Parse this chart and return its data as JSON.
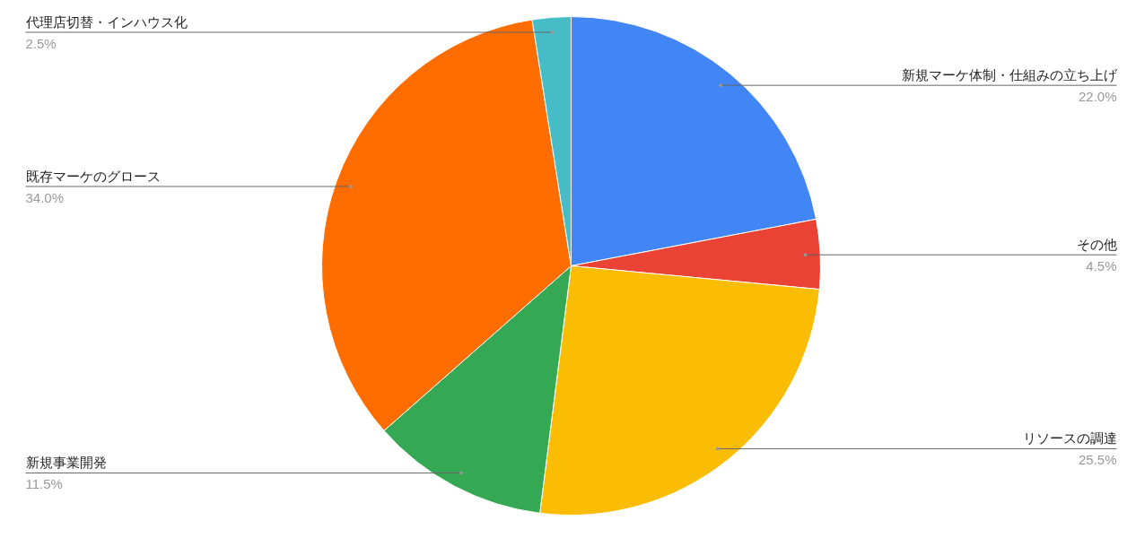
{
  "chart_data": {
    "type": "pie",
    "categories": [
      "新規マーケ体制・仕組みの立ち上げ",
      "その他",
      "リソースの調達",
      "新規事業開発",
      "既存マーケのグロース",
      "代理店切替・インハウス化"
    ],
    "values": [
      22.0,
      4.5,
      25.5,
      11.5,
      34.0,
      2.5
    ],
    "colors": [
      "#4285f4",
      "#ea4335",
      "#fbbc04",
      "#34a853",
      "#ff6d01",
      "#46bdc6"
    ],
    "value_labels": [
      "22.0%",
      "4.5%",
      "25.5%",
      "11.5%",
      "34.0%",
      "2.5%"
    ]
  }
}
